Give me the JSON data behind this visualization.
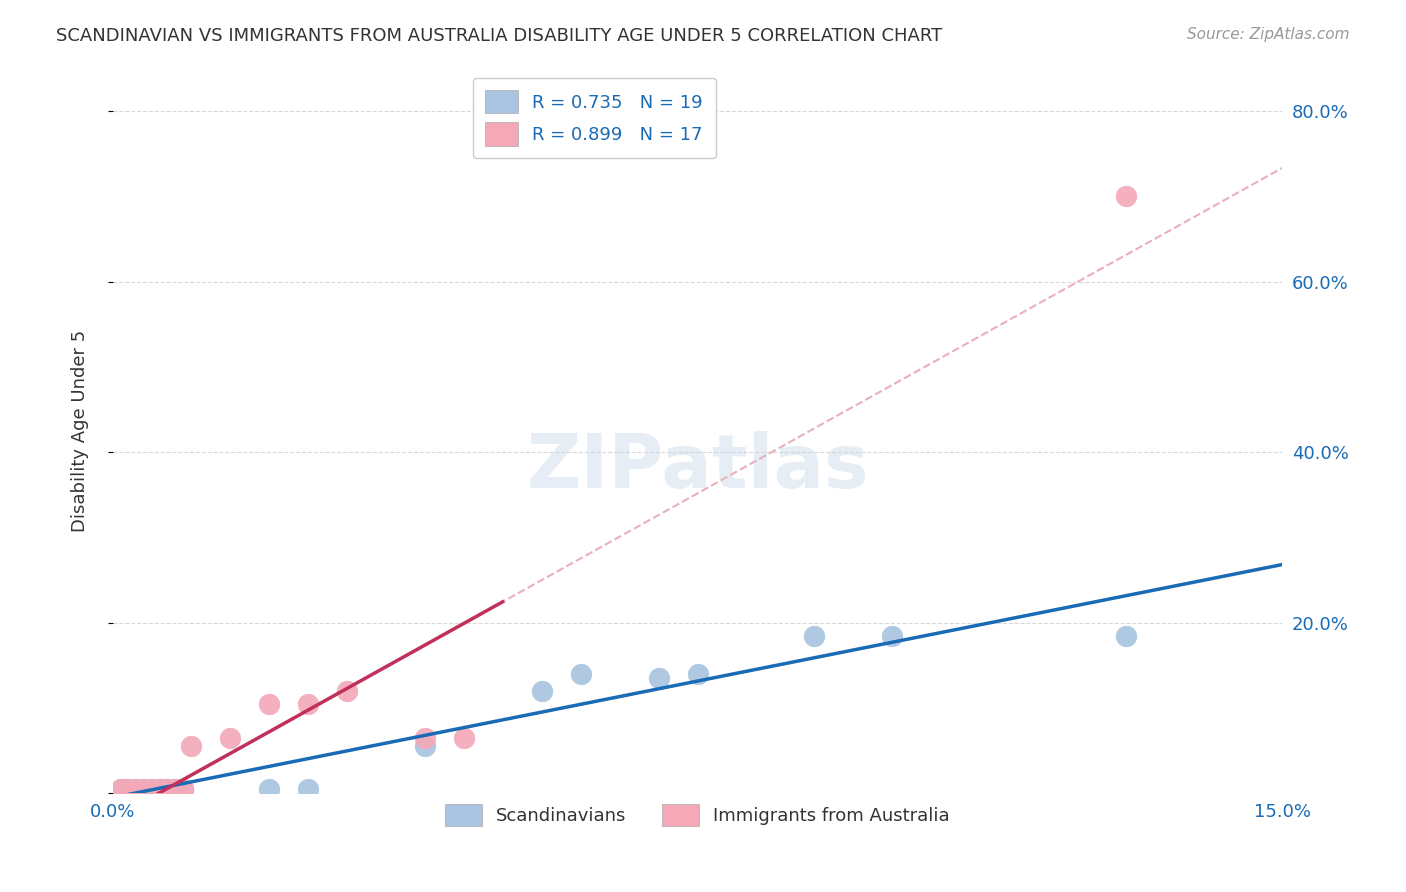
{
  "title": "SCANDINAVIAN VS IMMIGRANTS FROM AUSTRALIA DISABILITY AGE UNDER 5 CORRELATION CHART",
  "source": "Source: ZipAtlas.com",
  "ylabel": "Disability Age Under 5",
  "watermark": "ZIPatlas",
  "xlim": [
    0.0,
    0.15
  ],
  "ylim": [
    0.0,
    0.85
  ],
  "xticks": [
    0.0,
    0.03,
    0.06,
    0.09,
    0.12,
    0.15
  ],
  "xtick_labels": [
    "0.0%",
    "",
    "",
    "",
    "",
    "15.0%"
  ],
  "ytick_labels_right": [
    "",
    "20.0%",
    "40.0%",
    "60.0%",
    "80.0%"
  ],
  "yticks_right": [
    0.0,
    0.2,
    0.4,
    0.6,
    0.8
  ],
  "scandinavians_x": [
    0.001,
    0.002,
    0.003,
    0.004,
    0.005,
    0.006,
    0.007,
    0.008,
    0.009,
    0.02,
    0.025,
    0.04,
    0.055,
    0.06,
    0.07,
    0.075,
    0.09,
    0.1,
    0.13
  ],
  "scandinavians_y": [
    0.005,
    0.005,
    0.005,
    0.005,
    0.005,
    0.005,
    0.005,
    0.005,
    0.005,
    0.005,
    0.005,
    0.055,
    0.12,
    0.14,
    0.135,
    0.14,
    0.185,
    0.185,
    0.185
  ],
  "immigrants_x": [
    0.001,
    0.002,
    0.003,
    0.004,
    0.005,
    0.006,
    0.007,
    0.008,
    0.009,
    0.01,
    0.015,
    0.02,
    0.025,
    0.03,
    0.04,
    0.045,
    0.13
  ],
  "immigrants_y": [
    0.005,
    0.005,
    0.005,
    0.005,
    0.005,
    0.005,
    0.005,
    0.005,
    0.005,
    0.055,
    0.065,
    0.105,
    0.105,
    0.12,
    0.065,
    0.065,
    0.7
  ],
  "r_scandinavians": 0.735,
  "n_scandinavians": 19,
  "r_immigrants": 0.899,
  "n_immigrants": 17,
  "color_scandinavians": "#a8c4e0",
  "color_immigrants": "#f4a8b8",
  "color_line_scandinavians": "#1a6bb5",
  "color_line_immigrants": "#c0305a",
  "color_trendline_scandinavians": "#c8c8c8",
  "color_trendline_immigrants": "#e8b0bc",
  "background_color": "#ffffff",
  "grid_color": "#d8d8d8",
  "legend_label_scandinavians": "Scandinavians",
  "legend_label_immigrants": "Immigrants from Australia"
}
